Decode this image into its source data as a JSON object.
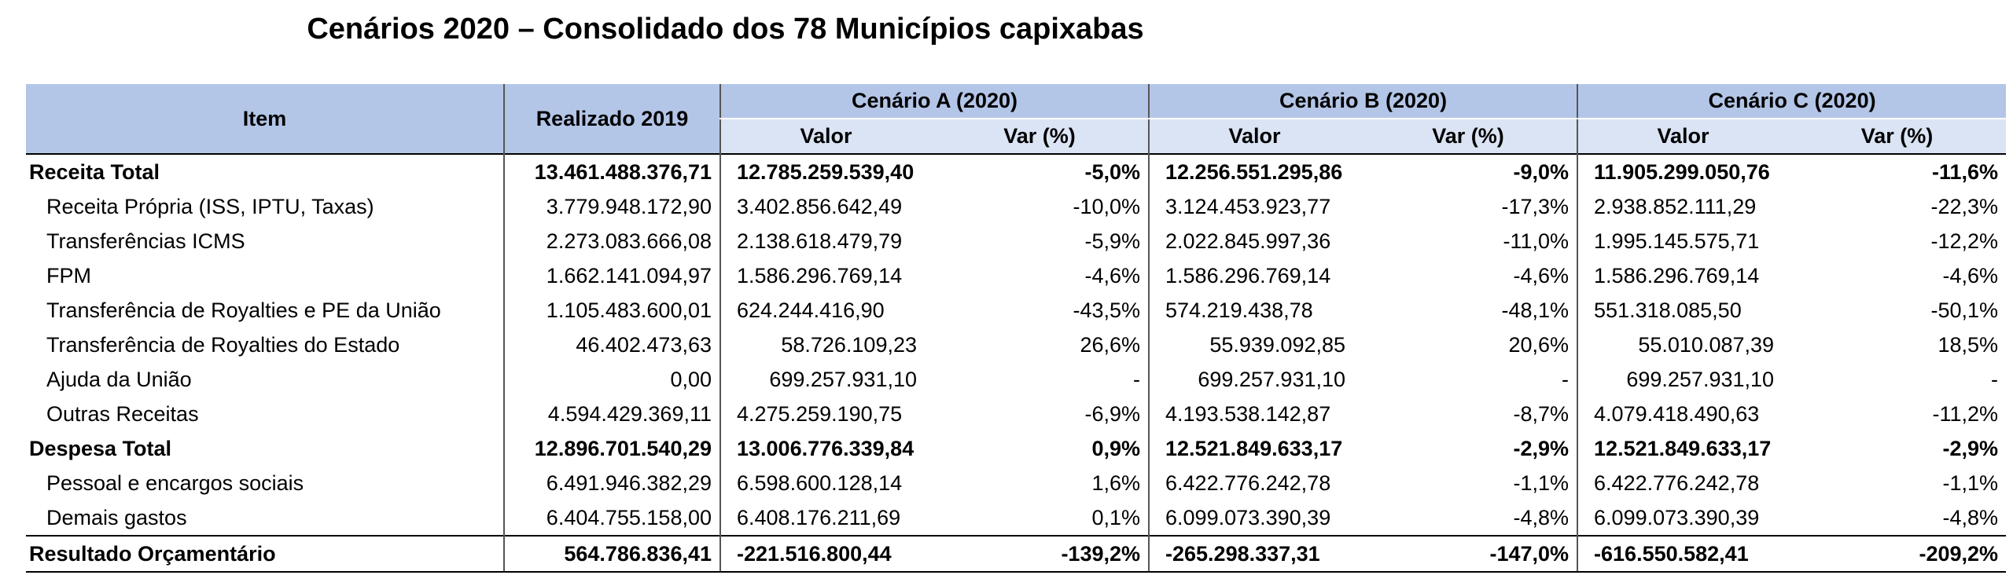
{
  "title": "Cenários 2020 – Consolidado dos 78 Municípios capixabas",
  "header": {
    "item": "Item",
    "realizado": "Realizado 2019",
    "scenario_a": "Cenário A (2020)",
    "scenario_b": "Cenário B (2020)",
    "scenario_c": "Cenário C (2020)",
    "valor": "Valor",
    "var": "Var (%)"
  },
  "rows": [
    {
      "item": "Receita Total",
      "r2019": "13.461.488.376,71",
      "a_val": "12.785.259.539,40",
      "a_var": "-5,0%",
      "b_val": "12.256.551.295,86",
      "b_var": "-9,0%",
      "c_val": "11.905.299.050,76",
      "c_var": "-11,6%"
    },
    {
      "item": "Receita Própria (ISS, IPTU, Taxas)",
      "r2019": "3.779.948.172,90",
      "a_val": "3.402.856.642,49",
      "a_var": "-10,0%",
      "b_val": "3.124.453.923,77",
      "b_var": "-17,3%",
      "c_val": "2.938.852.111,29",
      "c_var": "-22,3%"
    },
    {
      "item": "Transferências ICMS",
      "r2019": "2.273.083.666,08",
      "a_val": "2.138.618.479,79",
      "a_var": "-5,9%",
      "b_val": "2.022.845.997,36",
      "b_var": "-11,0%",
      "c_val": "1.995.145.575,71",
      "c_var": "-12,2%"
    },
    {
      "item": "FPM",
      "r2019": "1.662.141.094,97",
      "a_val": "1.586.296.769,14",
      "a_var": "-4,6%",
      "b_val": "1.586.296.769,14",
      "b_var": "-4,6%",
      "c_val": "1.586.296.769,14",
      "c_var": "-4,6%"
    },
    {
      "item": "Transferência de Royalties e PE da União",
      "r2019": "1.105.483.600,01",
      "a_val": "624.244.416,90",
      "a_var": "-43,5%",
      "b_val": "574.219.438,78",
      "b_var": "-48,1%",
      "c_val": "551.318.085,50",
      "c_var": "-50,1%"
    },
    {
      "item": "Transferência de Royalties do Estado",
      "r2019": "46.402.473,63",
      "a_val": "58.726.109,23",
      "a_var": "26,6%",
      "b_val": "55.939.092,85",
      "b_var": "20,6%",
      "c_val": "55.010.087,39",
      "c_var": "18,5%"
    },
    {
      "item": "Ajuda da União",
      "r2019": "0,00",
      "a_val": "699.257.931,10",
      "a_var": "-",
      "b_val": "699.257.931,10",
      "b_var": "-",
      "c_val": "699.257.931,10",
      "c_var": "-"
    },
    {
      "item": "Outras Receitas",
      "r2019": "4.594.429.369,11",
      "a_val": "4.275.259.190,75",
      "a_var": "-6,9%",
      "b_val": "4.193.538.142,87",
      "b_var": "-8,7%",
      "c_val": "4.079.418.490,63",
      "c_var": "-11,2%"
    },
    {
      "item": "Despesa Total",
      "r2019": "12.896.701.540,29",
      "a_val": "13.006.776.339,84",
      "a_var": "0,9%",
      "b_val": "12.521.849.633,17",
      "b_var": "-2,9%",
      "c_val": "12.521.849.633,17",
      "c_var": "-2,9%"
    },
    {
      "item": "Pessoal e encargos sociais",
      "r2019": "6.491.946.382,29",
      "a_val": "6.598.600.128,14",
      "a_var": "1,6%",
      "b_val": "6.422.776.242,78",
      "b_var": "-1,1%",
      "c_val": "6.422.776.242,78",
      "c_var": "-1,1%"
    },
    {
      "item": "Demais gastos",
      "r2019": "6.404.755.158,00",
      "a_val": "6.408.176.211,69",
      "a_var": "0,1%",
      "b_val": "6.099.073.390,39",
      "b_var": "-4,8%",
      "c_val": "6.099.073.390,39",
      "c_var": "-4,8%"
    },
    {
      "item": "Resultado Orçamentário",
      "r2019": "564.786.836,41",
      "a_val": "-221.516.800,44",
      "a_var": "-139,2%",
      "b_val": "-265.298.337,31",
      "b_var": "-147,0%",
      "c_val": "-616.550.582,41",
      "c_var": "-209,2%"
    }
  ]
}
